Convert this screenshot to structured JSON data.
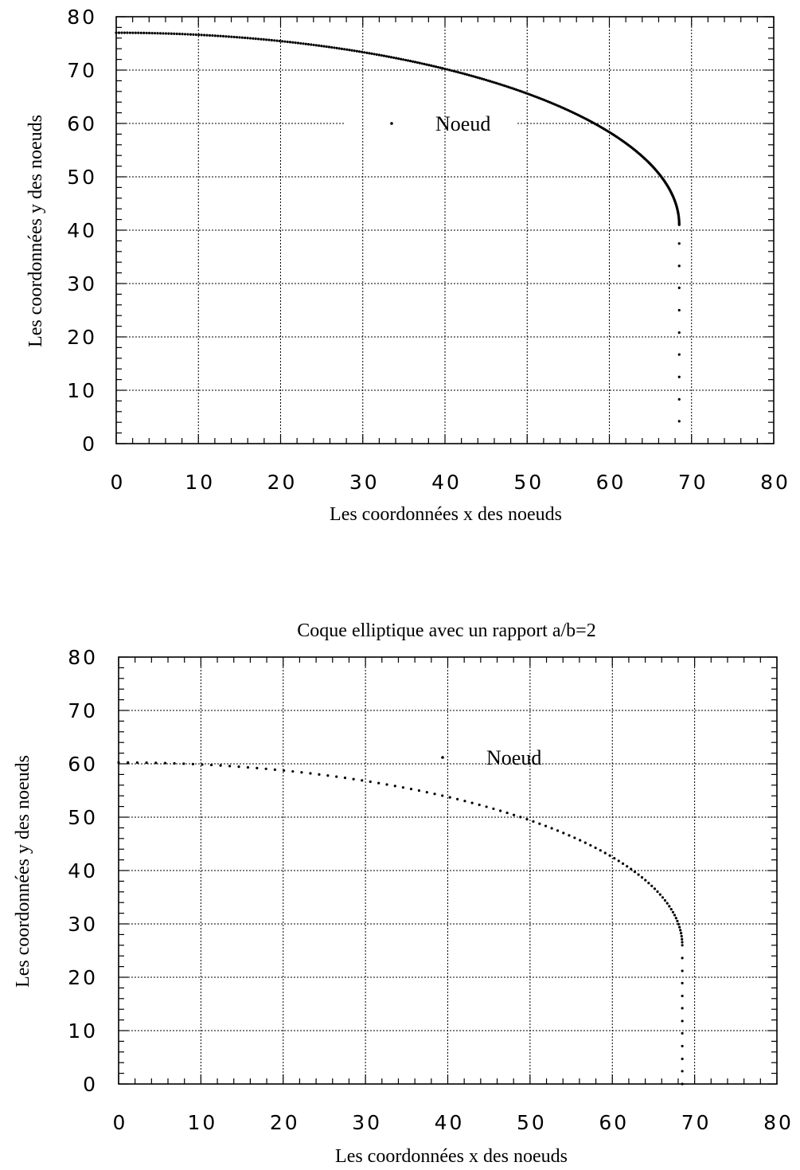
{
  "chart_data": [
    {
      "type": "scatter",
      "title": "",
      "xlabel": "Les coordonnées x des noeuds",
      "ylabel": "Les coordonnées y des noeuds",
      "xlim": [
        0,
        80
      ],
      "ylim": [
        0,
        80
      ],
      "xticks": [
        "0",
        "10",
        "20",
        "30",
        "40",
        "50",
        "60",
        "70",
        "80"
      ],
      "yticks": [
        "0",
        "10",
        "20",
        "30",
        "40",
        "50",
        "60",
        "70",
        "80"
      ],
      "grid": true,
      "legend": "top-center",
      "series": [
        {
          "name": "Noeud",
          "shape": "elliptic shell cap (a/b≈1.8) followed by vertical cylinder wall",
          "cap": {
            "a": 68.5,
            "b": 36,
            "y_base": 41,
            "n_points": 320
          },
          "wall": {
            "x": 68.5,
            "y_values": [
              37.5,
              33.3,
              29.2,
              25.0,
              20.8,
              16.7,
              12.5,
              8.3,
              4.2
            ]
          }
        }
      ]
    },
    {
      "type": "scatter",
      "title": "Coque elliptique avec un rapport a/b=2",
      "xlabel": "Les coordonnées x des noeuds",
      "ylabel": "Les coordonnées y des noeuds",
      "xlim": [
        0,
        80
      ],
      "ylim": [
        0,
        80
      ],
      "xticks": [
        "0",
        "10",
        "20",
        "30",
        "40",
        "50",
        "60",
        "70",
        "80"
      ],
      "yticks": [
        "0",
        "10",
        "20",
        "30",
        "40",
        "50",
        "60",
        "70",
        "80"
      ],
      "grid": true,
      "legend": "top-center",
      "series": [
        {
          "name": "Noeud",
          "shape": "elliptic shell cap (a/b=2) followed by vertical cylinder wall",
          "cap": {
            "a": 68.5,
            "b": 34.25,
            "y_base": 26,
            "n_points": 95
          },
          "wall": {
            "x": 68.5,
            "y_values": [
              23.6,
              21.2,
              18.9,
              16.5,
              14.2,
              11.8,
              9.5,
              7.1,
              4.7,
              2.4,
              0.0
            ]
          }
        }
      ]
    }
  ]
}
